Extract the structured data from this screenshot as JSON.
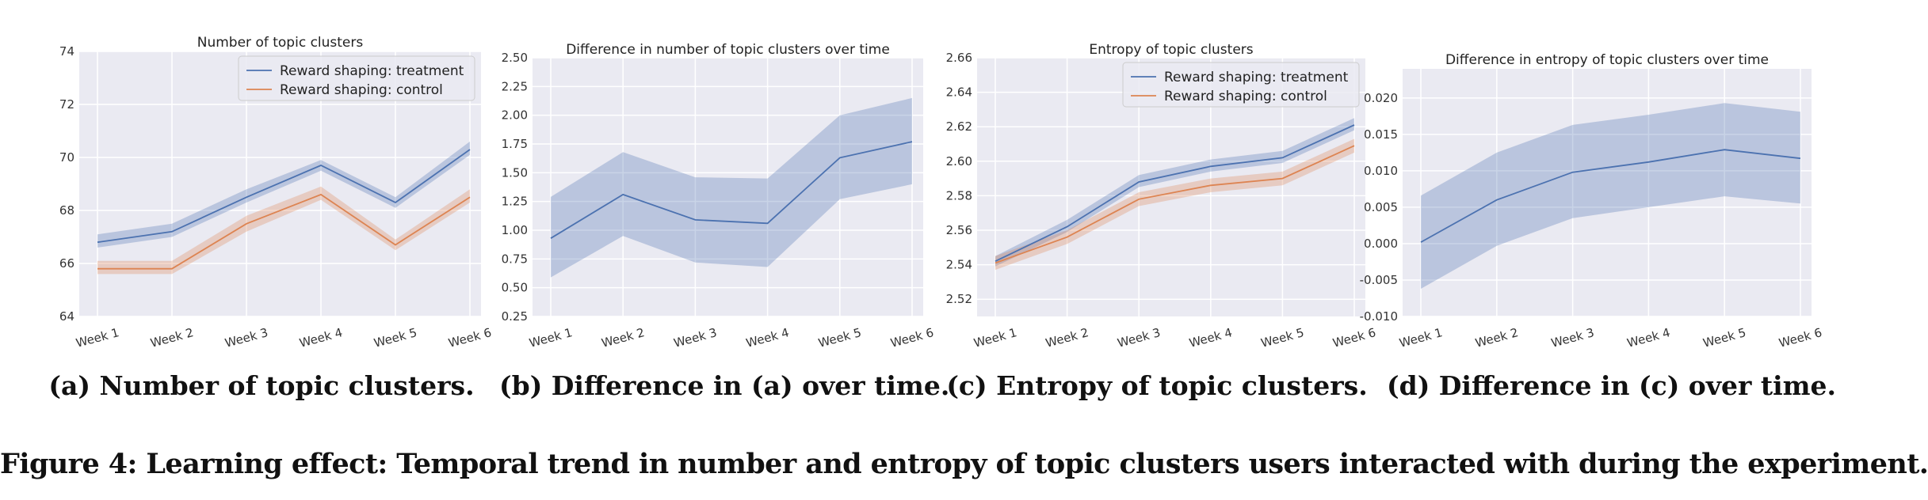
{
  "figure_caption": "Figure 4: Learning effect: Temporal trend in number and entropy of topic clusters users interacted with during the experiment.",
  "panel_captions": [
    "(a) Number of topic clusters.",
    "(b) Difference in (a) over time.",
    "(c) Entropy of topic clusters.",
    "(d) Difference in (c) over time."
  ],
  "colors": {
    "treatment": "#4c72b0",
    "control": "#dd8452",
    "plot_bg": "#eaeaf2",
    "grid": "#ffffff"
  },
  "chart_data": [
    {
      "type": "line",
      "title": "Number of topic clusters",
      "categories": [
        "Week 1",
        "Week 2",
        "Week 3",
        "Week 4",
        "Week 5",
        "Week 6"
      ],
      "ylim": [
        64,
        74
      ],
      "yticks": [
        "64",
        "66",
        "68",
        "70",
        "72",
        "74"
      ],
      "grid": true,
      "legend": "top-right",
      "series": [
        {
          "name": "Reward shaping: treatment",
          "color": "#4c72b0",
          "values": [
            66.8,
            67.2,
            68.5,
            69.7,
            68.3,
            70.3
          ],
          "lower": [
            66.6,
            67.0,
            68.3,
            69.5,
            68.1,
            70.1
          ],
          "upper": [
            67.1,
            67.5,
            68.8,
            69.9,
            68.5,
            70.6
          ]
        },
        {
          "name": "Reward shaping: control",
          "color": "#dd8452",
          "values": [
            65.8,
            65.8,
            67.5,
            68.6,
            66.7,
            68.5
          ],
          "lower": [
            65.6,
            65.6,
            67.2,
            68.4,
            66.5,
            68.3
          ],
          "upper": [
            66.1,
            66.1,
            67.8,
            68.9,
            66.9,
            68.8
          ]
        }
      ]
    },
    {
      "type": "line",
      "title": "Difference in number of topic clusters over time",
      "categories": [
        "Week 1",
        "Week 2",
        "Week 3",
        "Week 4",
        "Week 5",
        "Week 6"
      ],
      "ylim": [
        0.25,
        2.5
      ],
      "yticks": [
        "0.25",
        "0.50",
        "0.75",
        "1.00",
        "1.25",
        "1.50",
        "1.75",
        "2.00",
        "2.25",
        "2.50"
      ],
      "grid": true,
      "series": [
        {
          "color": "#4c72b0",
          "values": [
            0.93,
            1.31,
            1.09,
            1.06,
            1.63,
            1.77
          ],
          "lower": [
            0.59,
            0.95,
            0.72,
            0.68,
            1.27,
            1.4
          ],
          "upper": [
            1.29,
            1.68,
            1.46,
            1.45,
            2.0,
            2.15
          ]
        }
      ]
    },
    {
      "type": "line",
      "title": "Entropy of topic clusters",
      "categories": [
        "Week 1",
        "Week 2",
        "Week 3",
        "Week 4",
        "Week 5",
        "Week 6"
      ],
      "ylim": [
        2.51,
        2.66
      ],
      "yticks": [
        "2.52",
        "2.54",
        "2.56",
        "2.58",
        "2.60",
        "2.62",
        "2.64",
        "2.66"
      ],
      "grid": true,
      "legend": "top-right",
      "series": [
        {
          "name": "Reward shaping: treatment",
          "color": "#4c72b0",
          "values": [
            2.542,
            2.562,
            2.588,
            2.597,
            2.602,
            2.621
          ],
          "lower": [
            2.539,
            2.559,
            2.585,
            2.594,
            2.599,
            2.618
          ],
          "upper": [
            2.545,
            2.566,
            2.592,
            2.601,
            2.606,
            2.625
          ]
        },
        {
          "name": "Reward shaping: control",
          "color": "#dd8452",
          "values": [
            2.541,
            2.556,
            2.578,
            2.586,
            2.59,
            2.609
          ],
          "lower": [
            2.537,
            2.552,
            2.574,
            2.582,
            2.586,
            2.605
          ],
          "upper": [
            2.545,
            2.56,
            2.582,
            2.59,
            2.594,
            2.613
          ]
        }
      ]
    },
    {
      "type": "line",
      "title": "Difference in entropy of topic clusters over time",
      "categories": [
        "Week 1",
        "Week 2",
        "Week 3",
        "Week 4",
        "Week 5",
        "Week 6"
      ],
      "ylim": [
        -0.01,
        0.024
      ],
      "yticks": [
        "-0.010",
        "-0.005",
        "0.000",
        "0.005",
        "0.010",
        "0.015",
        "0.020"
      ],
      "grid": true,
      "series": [
        {
          "color": "#4c72b0",
          "values": [
            0.0002,
            0.006,
            0.0098,
            0.0112,
            0.0129,
            0.0117
          ],
          "lower": [
            -0.0062,
            -0.0003,
            0.0035,
            0.005,
            0.0065,
            0.0055
          ],
          "upper": [
            0.0066,
            0.0125,
            0.0163,
            0.0177,
            0.0193,
            0.0181
          ]
        }
      ]
    }
  ]
}
